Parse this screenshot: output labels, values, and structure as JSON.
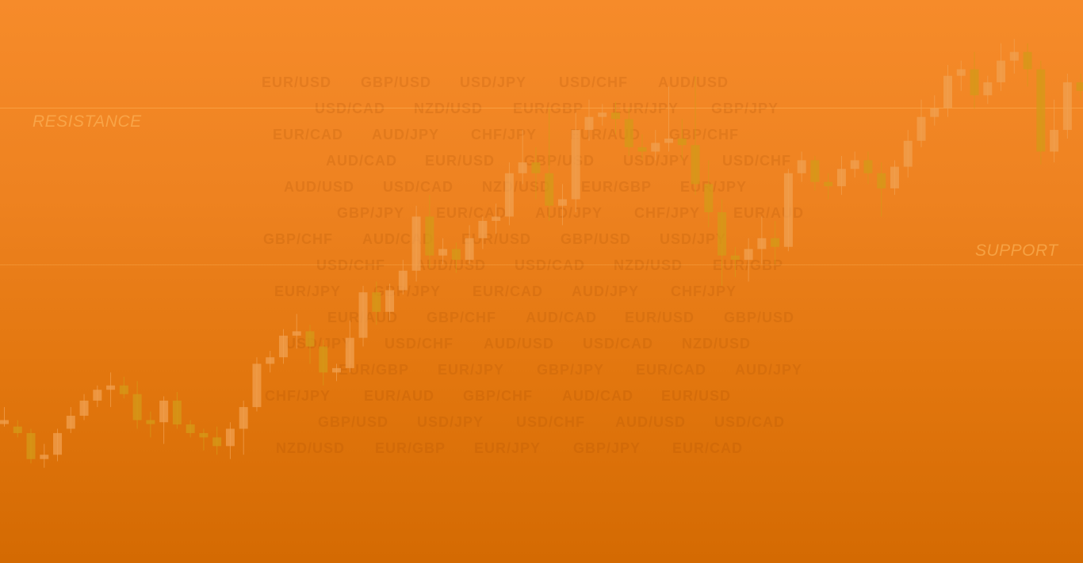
{
  "levels": {
    "resistance_label": "RESISTANCE",
    "support_label": "SUPPORT",
    "line_color": "#FFB45A"
  },
  "colors": {
    "background_top": "#F68B2A",
    "background_bottom": "#D46A02",
    "candle_up": "#F0A050",
    "candle_down": "#D49A18",
    "pair_text": "#B04F00"
  },
  "pairs": [
    "EUR/USD",
    "GBP/USD",
    "USD/JPY",
    "USD/CHF",
    "AUD/USD",
    "USD/CAD",
    "NZD/USD",
    "EUR/GBP",
    "EUR/JPY",
    "GBP/JPY",
    "EUR/CAD",
    "AUD/JPY",
    "CHF/JPY",
    "EUR/AUD",
    "GBP/CHF",
    "AUD/CAD"
  ],
  "chart_data": {
    "type": "candlestick",
    "title": "",
    "xlabel": "",
    "ylabel": "",
    "annotations": [
      "RESISTANCE",
      "SUPPORT"
    ],
    "series": [
      {
        "ohlc": [
          [
            66,
            66,
            63,
            72
          ],
          [
            63,
            60,
            58,
            66
          ],
          [
            60,
            48,
            46,
            62
          ],
          [
            48,
            50,
            44,
            55
          ],
          [
            50,
            60,
            47,
            62
          ],
          [
            62,
            68,
            60,
            72
          ],
          [
            68,
            75,
            66,
            78
          ],
          [
            75,
            80,
            72,
            82
          ],
          [
            80,
            82,
            72,
            88
          ],
          [
            82,
            78,
            76,
            86
          ],
          [
            78,
            66,
            62,
            84
          ],
          [
            66,
            65,
            58,
            70
          ],
          [
            65,
            75,
            55,
            77
          ],
          [
            75,
            64,
            62,
            79
          ],
          [
            64,
            60,
            58,
            66
          ],
          [
            60,
            58,
            52,
            62
          ],
          [
            58,
            54,
            50,
            63
          ],
          [
            54,
            62,
            48,
            65
          ],
          [
            62,
            72,
            50,
            75
          ],
          [
            72,
            92,
            70,
            95
          ],
          [
            92,
            95,
            88,
            98
          ],
          [
            95,
            105,
            92,
            108
          ],
          [
            105,
            107,
            99,
            115
          ],
          [
            107,
            100,
            92,
            110
          ],
          [
            100,
            88,
            82,
            103
          ],
          [
            88,
            90,
            84,
            92
          ],
          [
            90,
            104,
            88,
            112
          ],
          [
            104,
            125,
            100,
            128
          ],
          [
            125,
            116,
            110,
            130
          ],
          [
            116,
            126,
            112,
            129
          ],
          [
            126,
            135,
            124,
            140
          ],
          [
            135,
            160,
            130,
            165
          ],
          [
            160,
            142,
            136,
            170
          ],
          [
            142,
            145,
            138,
            150
          ],
          [
            145,
            140,
            134,
            148
          ],
          [
            140,
            150,
            138,
            156
          ],
          [
            150,
            158,
            145,
            160
          ],
          [
            158,
            160,
            152,
            166
          ],
          [
            160,
            180,
            156,
            185
          ],
          [
            180,
            185,
            175,
            200
          ],
          [
            185,
            180,
            168,
            192
          ],
          [
            180,
            165,
            158,
            210
          ],
          [
            165,
            168,
            156,
            175
          ],
          [
            168,
            200,
            162,
            208
          ],
          [
            200,
            206,
            195,
            214
          ],
          [
            206,
            208,
            202,
            212
          ],
          [
            208,
            205,
            198,
            213
          ],
          [
            205,
            192,
            188,
            210
          ],
          [
            192,
            190,
            186,
            198
          ],
          [
            190,
            194,
            186,
            200
          ],
          [
            194,
            196,
            190,
            220
          ],
          [
            196,
            193,
            186,
            205
          ],
          [
            193,
            175,
            170,
            225
          ],
          [
            175,
            162,
            155,
            186
          ],
          [
            162,
            142,
            128,
            168
          ],
          [
            142,
            140,
            132,
            146
          ],
          [
            140,
            145,
            130,
            150
          ],
          [
            145,
            150,
            138,
            160
          ],
          [
            150,
            146,
            138,
            158
          ],
          [
            146,
            180,
            144,
            182
          ],
          [
            180,
            186,
            176,
            190
          ],
          [
            186,
            176,
            172,
            188
          ],
          [
            176,
            174,
            168,
            180
          ],
          [
            174,
            182,
            170,
            188
          ],
          [
            182,
            186,
            178,
            190
          ],
          [
            186,
            180,
            175,
            190
          ],
          [
            180,
            173,
            160,
            185
          ],
          [
            173,
            183,
            170,
            186
          ],
          [
            183,
            195,
            178,
            200
          ],
          [
            195,
            206,
            192,
            214
          ],
          [
            206,
            210,
            202,
            216
          ],
          [
            210,
            225,
            206,
            230
          ],
          [
            225,
            228,
            218,
            232
          ],
          [
            228,
            216,
            210,
            236
          ],
          [
            216,
            222,
            212,
            225
          ],
          [
            222,
            232,
            218,
            240
          ],
          [
            232,
            236,
            226,
            242
          ],
          [
            236,
            228,
            220,
            240
          ],
          [
            228,
            190,
            184,
            232
          ],
          [
            190,
            200,
            185,
            214
          ],
          [
            200,
            222,
            196,
            226
          ],
          [
            222,
            218,
            214,
            226
          ]
        ]
      }
    ],
    "ylim": [
      0,
      260
    ]
  }
}
